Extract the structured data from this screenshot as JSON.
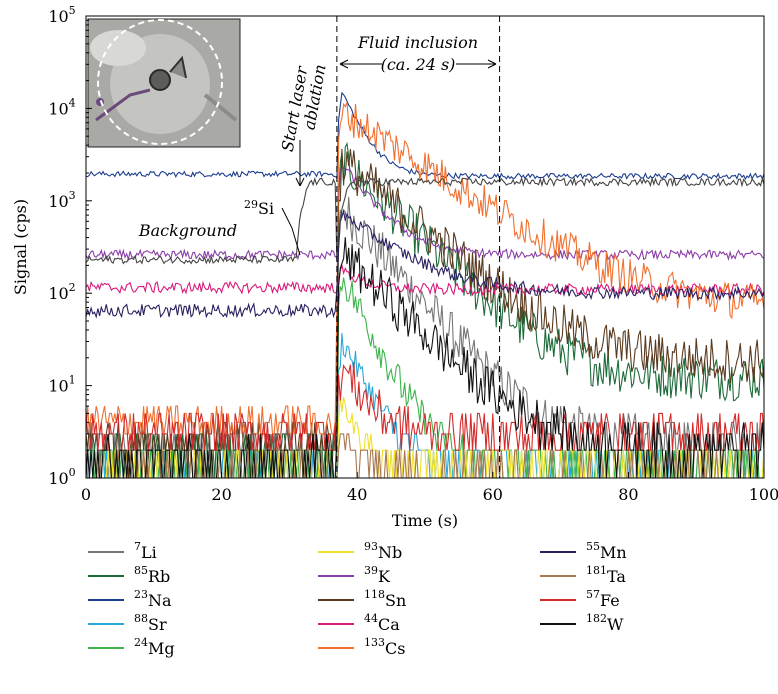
{
  "chart_data": {
    "type": "line",
    "xlabel": "Time (s)",
    "ylabel": "Signal (cps)",
    "xlim": [
      0,
      100
    ],
    "ylim": [
      1,
      100000
    ],
    "yscale": "log",
    "x_ticks": [
      "0",
      "20",
      "40",
      "60",
      "80",
      "100"
    ],
    "y_ticks": [
      {
        "base": "10",
        "exp": "0"
      },
      {
        "base": "10",
        "exp": "1"
      },
      {
        "base": "10",
        "exp": "2"
      },
      {
        "base": "10",
        "exp": "3"
      },
      {
        "base": "10",
        "exp": "4"
      },
      {
        "base": "10",
        "exp": "5"
      }
    ],
    "grid": false,
    "legend_position": "bottom",
    "annotations": {
      "fluid_inclusion": "Fluid inclusion",
      "duration": "(ca. 24 s)",
      "start_laser": "Start laser",
      "ablation": "ablation",
      "background": "Background",
      "si_sup": "29",
      "si_label": "Si"
    },
    "markers": [
      {
        "x": 37,
        "style": "dashed"
      },
      {
        "x": 61,
        "style": "dashed"
      }
    ],
    "series": [
      {
        "name": "Li",
        "isotope": "7",
        "color": "#777777",
        "bg": 2,
        "peak": 1000,
        "decay": 5,
        "tail": 2.5,
        "noise": 0.25
      },
      {
        "name": "Rb",
        "isotope": "85",
        "color": "#1e6b3a",
        "bg": 2,
        "peak": 3000,
        "decay": 6,
        "tail": 12,
        "noise": 0.25
      },
      {
        "name": "Na",
        "isotope": "23",
        "color": "#1c3d8f",
        "bg": 1950,
        "peak": 20000,
        "decay": 2.5,
        "tail": 1850,
        "noise": 0.03
      },
      {
        "name": "Sr",
        "isotope": "88",
        "color": "#2aa8d8",
        "bg": 1.3,
        "peak": 40,
        "decay": 3,
        "tail": 1.3,
        "noise": 0.15
      },
      {
        "name": "Mg",
        "isotope": "24",
        "color": "#3cb44b",
        "bg": 1.5,
        "peak": 200,
        "decay": 3,
        "tail": 1.5,
        "noise": 0.2
      },
      {
        "name": "Nb",
        "isotope": "93",
        "color": "#f0e02a",
        "bg": 1.3,
        "peak": 10,
        "decay": 2,
        "tail": 1.3,
        "noise": 0.15
      },
      {
        "name": "K",
        "isotope": "39",
        "color": "#8a3fa8",
        "bg": 260,
        "peak": 3000,
        "decay": 4,
        "tail": 260,
        "noise": 0.05
      },
      {
        "name": "Sn",
        "isotope": "118",
        "color": "#5a3a1e",
        "bg": 2.5,
        "peak": 3000,
        "decay": 7,
        "tail": 18,
        "noise": 0.25
      },
      {
        "name": "Ca",
        "isotope": "44",
        "color": "#d81b7a",
        "bg": 115,
        "peak": 200,
        "decay": 3,
        "tail": 110,
        "noise": 0.06
      },
      {
        "name": "Cs",
        "isotope": "133",
        "color": "#f07030",
        "bg": 4,
        "peak": 10000,
        "decay": 9,
        "tail": 70,
        "noise": 0.2
      },
      {
        "name": "Mn",
        "isotope": "55",
        "color": "#2a2060",
        "bg": 65,
        "peak": 800,
        "decay": 7,
        "tail": 100,
        "noise": 0.07
      },
      {
        "name": "Ta",
        "isotope": "181",
        "color": "#a87850",
        "bg": 1.2,
        "peak": 3,
        "decay": 3,
        "tail": 1.2,
        "noise": 0.15
      },
      {
        "name": "Fe",
        "isotope": "57",
        "color": "#d42a2a",
        "bg": 3,
        "peak": 20,
        "decay": 3,
        "tail": 3,
        "noise": 0.25
      },
      {
        "name": "W",
        "isotope": "182",
        "color": "#111111",
        "bg": 1.5,
        "peak": 300,
        "decay": 6,
        "tail": 2,
        "noise": 0.25
      },
      {
        "name": "Si",
        "isotope": "29",
        "color": "#444444",
        "bg": 230,
        "peak": 2000,
        "decay": 99,
        "tail": 1600,
        "noise": 0.04
      }
    ],
    "legend_order": [
      [
        "Li",
        "Rb",
        "Na",
        "Sr",
        "Mg"
      ],
      [
        "Nb",
        "K",
        "Sn",
        "Ca",
        "Cs"
      ],
      [
        "Mn",
        "Ta",
        "Fe",
        "W"
      ]
    ]
  }
}
